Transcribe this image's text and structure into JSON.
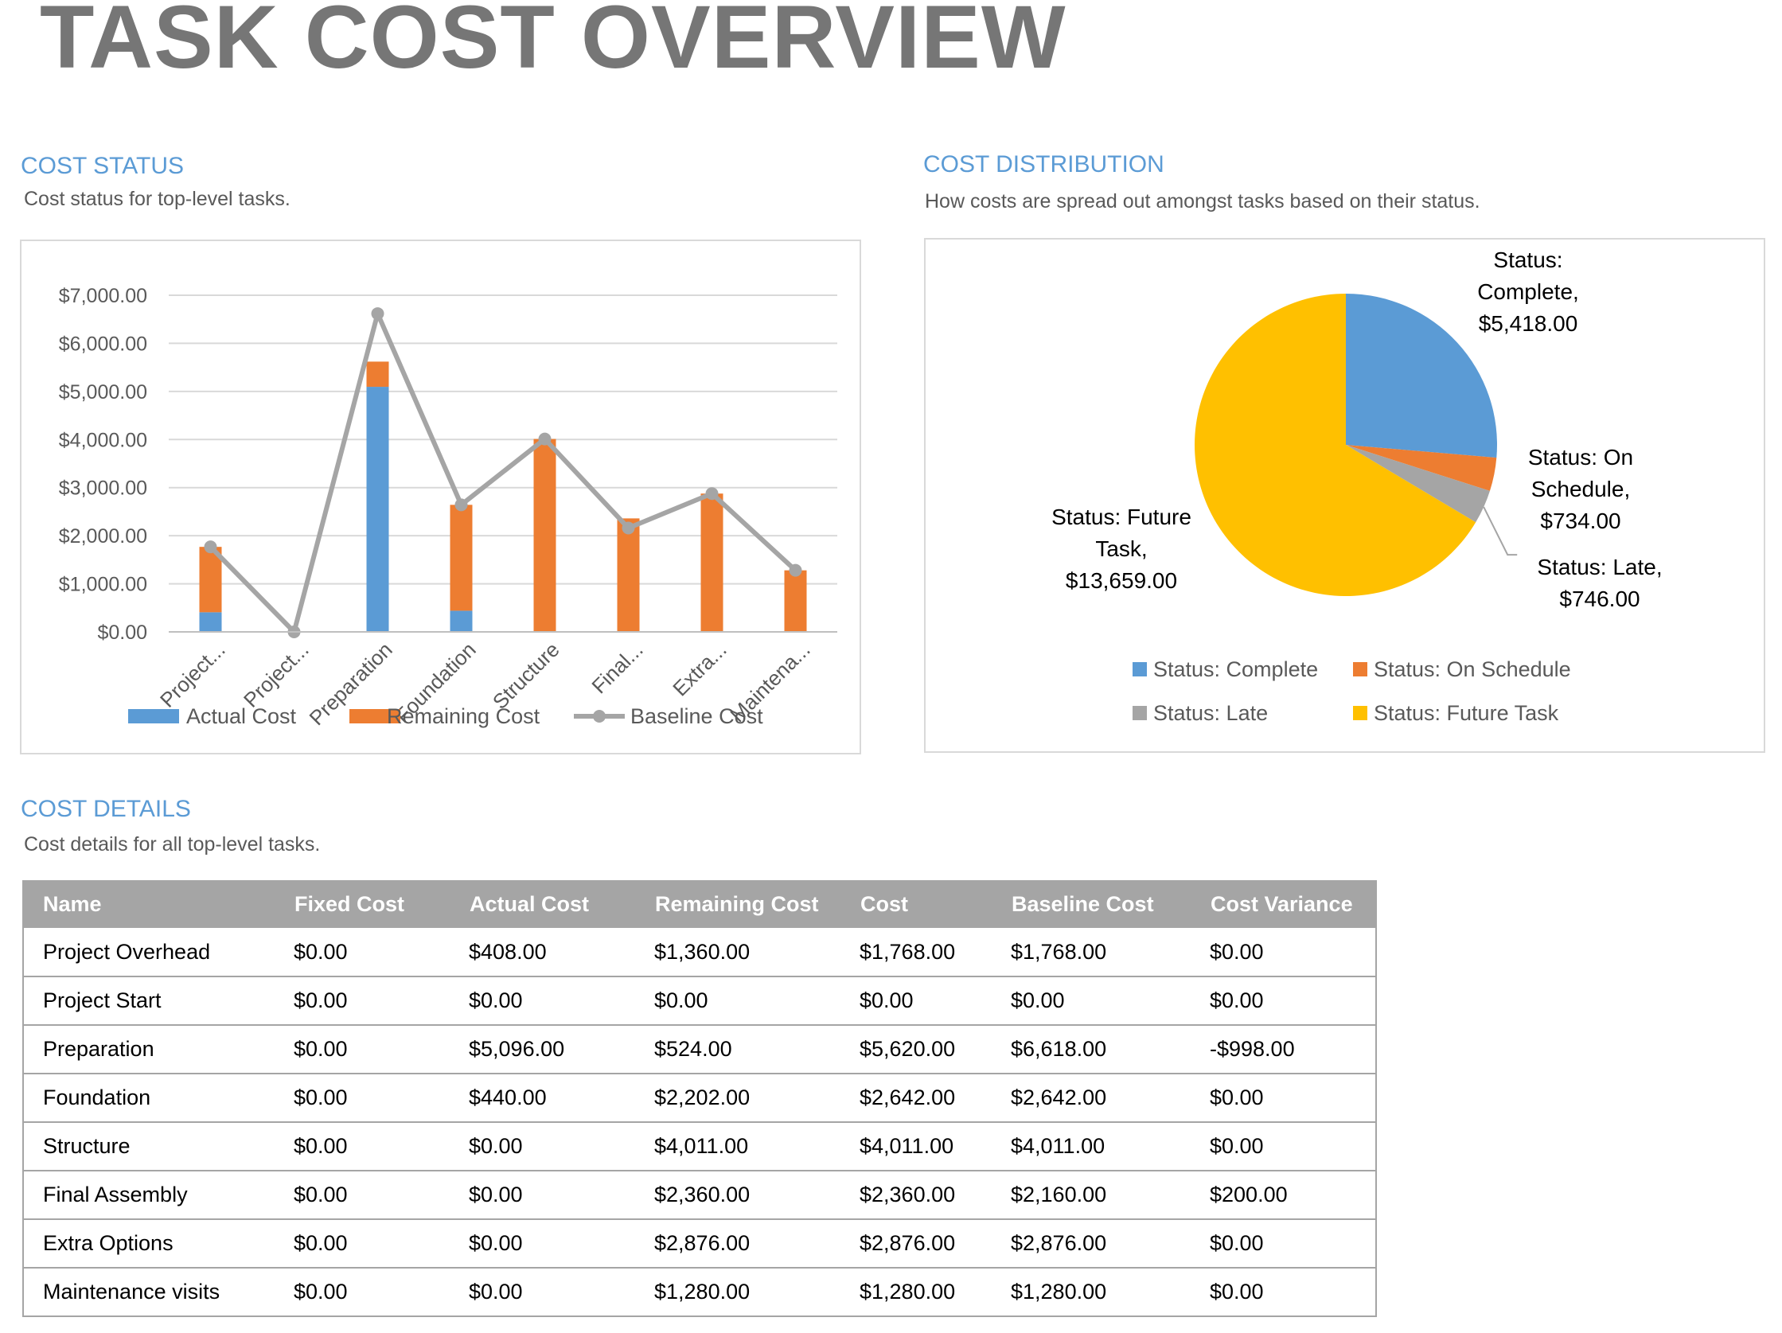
{
  "page": {
    "title": "TASK COST OVERVIEW"
  },
  "cost_status": {
    "title": "COST STATUS",
    "description": "Cost status for top-level tasks."
  },
  "cost_distribution": {
    "title": "COST DISTRIBUTION",
    "description": "How costs are spread out amongst tasks based on their status."
  },
  "cost_details": {
    "title": "COST DETAILS",
    "description": "Cost details for all top-level tasks.",
    "columns": [
      "Name",
      "Fixed Cost",
      "Actual Cost",
      "Remaining Cost",
      "Cost",
      "Baseline Cost",
      "Cost Variance"
    ],
    "rows": [
      [
        "Project Overhead",
        "$0.00",
        "$408.00",
        "$1,360.00",
        "$1,768.00",
        "$1,768.00",
        "$0.00"
      ],
      [
        "Project Start",
        "$0.00",
        "$0.00",
        "$0.00",
        "$0.00",
        "$0.00",
        "$0.00"
      ],
      [
        "Preparation",
        "$0.00",
        "$5,096.00",
        "$524.00",
        "$5,620.00",
        "$6,618.00",
        "-$998.00"
      ],
      [
        "Foundation",
        "$0.00",
        "$440.00",
        "$2,202.00",
        "$2,642.00",
        "$2,642.00",
        "$0.00"
      ],
      [
        "Structure",
        "$0.00",
        "$0.00",
        "$4,011.00",
        "$4,011.00",
        "$4,011.00",
        "$0.00"
      ],
      [
        "Final Assembly",
        "$0.00",
        "$0.00",
        "$2,360.00",
        "$2,360.00",
        "$2,160.00",
        "$200.00"
      ],
      [
        "Extra Options",
        "$0.00",
        "$0.00",
        "$2,876.00",
        "$2,876.00",
        "$2,876.00",
        "$0.00"
      ],
      [
        "Maintenance visits",
        "$0.00",
        "$0.00",
        "$1,280.00",
        "$1,280.00",
        "$1,280.00",
        "$0.00"
      ]
    ]
  },
  "chart_data": [
    {
      "type": "bar",
      "stacked": true,
      "categories": [
        "Project...",
        "Project...",
        "Preparation",
        "Foundation",
        "Structure",
        "Final...",
        "Extra...",
        "Maintena..."
      ],
      "series": [
        {
          "name": "Actual Cost",
          "type": "bar",
          "color": "#5B9BD5",
          "values": [
            408,
            0,
            5096,
            440,
            0,
            0,
            0,
            0
          ]
        },
        {
          "name": "Remaining Cost",
          "type": "bar",
          "color": "#ED7D31",
          "values": [
            1360,
            0,
            524,
            2202,
            4011,
            2360,
            2876,
            1280
          ]
        },
        {
          "name": "Baseline Cost",
          "type": "line",
          "color": "#A5A5A5",
          "values": [
            1768,
            0,
            6618,
            2642,
            4011,
            2160,
            2876,
            1280
          ]
        }
      ],
      "y_ticks": [
        "$0.00",
        "$1,000.00",
        "$2,000.00",
        "$3,000.00",
        "$4,000.00",
        "$5,000.00",
        "$6,000.00",
        "$7,000.00"
      ],
      "ylim": [
        0,
        7000
      ],
      "grid": true,
      "legend": "bottom"
    },
    {
      "type": "pie",
      "labels": [
        "Status: Complete",
        "Status: On Schedule",
        "Status: Late",
        "Status: Future Task"
      ],
      "values": [
        5418,
        734,
        746,
        13659
      ],
      "colors": [
        "#5B9BD5",
        "#ED7D31",
        "#A5A5A5",
        "#FFC000"
      ],
      "data_labels": [
        [
          "Status:",
          "Complete,",
          "$5,418.00"
        ],
        [
          "Status: On",
          "Schedule,",
          "$734.00"
        ],
        [
          "Status: Late,",
          "$746.00"
        ],
        [
          "Status: Future",
          "Task,",
          "$13,659.00"
        ]
      ],
      "legend": "bottom"
    }
  ]
}
